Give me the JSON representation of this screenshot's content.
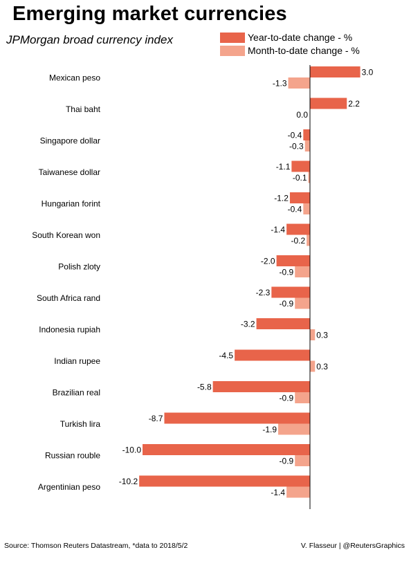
{
  "colors": {
    "ytd": "#e8644a",
    "mtd": "#f4a48c",
    "axis": "#000000"
  },
  "chart_data": {
    "type": "bar",
    "orientation": "horizontal",
    "title": "Emerging market currencies",
    "subtitle": "JPMorgan broad currency index",
    "categories": [
      "Mexican peso",
      "Thai baht",
      "Singapore dollar",
      "Taiwanese dollar",
      "Hungarian forint",
      "South Korean won",
      "Polish zloty",
      "South Africa rand",
      "Indonesia rupiah",
      "Indian rupee",
      "Brazilian real",
      "Turkish lira",
      "Russian rouble",
      "Argentinian peso"
    ],
    "series": [
      {
        "name": "Year-to-date change - %",
        "values": [
          3.0,
          2.2,
          -0.4,
          -1.1,
          -1.2,
          -1.4,
          -2.0,
          -2.3,
          -3.2,
          -4.5,
          -5.8,
          -8.7,
          -10.0,
          -10.2
        ]
      },
      {
        "name": "Month-to-date change - %",
        "values": [
          -1.3,
          0.0,
          -0.3,
          -0.1,
          -0.4,
          -0.2,
          -0.9,
          -0.9,
          0.3,
          0.3,
          -0.9,
          -1.9,
          -0.9,
          -1.4
        ]
      }
    ],
    "xlim": [
      -10.2,
      3.0
    ],
    "grid": false,
    "legend_position": "top-right"
  },
  "footer": {
    "source": "Source: Thomson Reuters Datastream, *data to 2018/5/2",
    "credit": "V. Flasseur | @ReutersGraphics"
  }
}
